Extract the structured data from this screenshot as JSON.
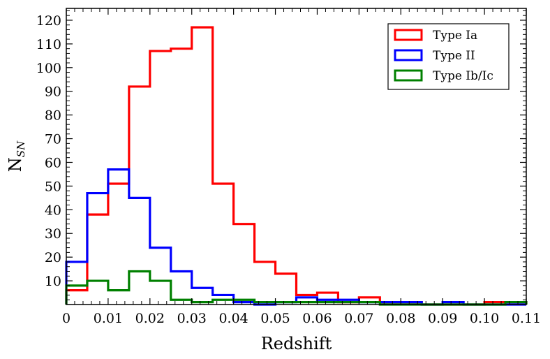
{
  "chart_data": {
    "type": "histogram",
    "xlabel": "Redshift",
    "ylabel": "N",
    "ylabel_sub": "SN",
    "xlim": [
      0,
      0.11
    ],
    "ylim": [
      0,
      125
    ],
    "bin_width": 0.005,
    "x_ticks": [
      "0",
      "0.01",
      "0.02",
      "0.03",
      "0.04",
      "0.05",
      "0.06",
      "0.07",
      "0.08",
      "0.09",
      "0.10",
      "0.11"
    ],
    "y_ticks": [
      "10",
      "20",
      "30",
      "40",
      "50",
      "60",
      "70",
      "80",
      "90",
      "100",
      "110",
      "120"
    ],
    "legend_position": "top-right",
    "series": [
      {
        "name": "Type Ia",
        "color": "#ff0000",
        "values": [
          6,
          38,
          51,
          92,
          107,
          108,
          117,
          51,
          34,
          18,
          13,
          4,
          5,
          1,
          3,
          1,
          1,
          0,
          0,
          0,
          1,
          1
        ]
      },
      {
        "name": "Type II",
        "color": "#0000ff",
        "values": [
          18,
          47,
          57,
          45,
          24,
          14,
          7,
          4,
          1,
          0,
          1,
          3,
          2,
          2,
          1,
          1,
          1,
          0,
          1,
          0,
          0,
          0
        ]
      },
      {
        "name": "Type Ib/Ic",
        "color": "#008000",
        "values": [
          8,
          10,
          6,
          14,
          10,
          2,
          1,
          2,
          2,
          1,
          1,
          1,
          1,
          1,
          1,
          0,
          0,
          0,
          0,
          0,
          0,
          1
        ]
      }
    ]
  }
}
